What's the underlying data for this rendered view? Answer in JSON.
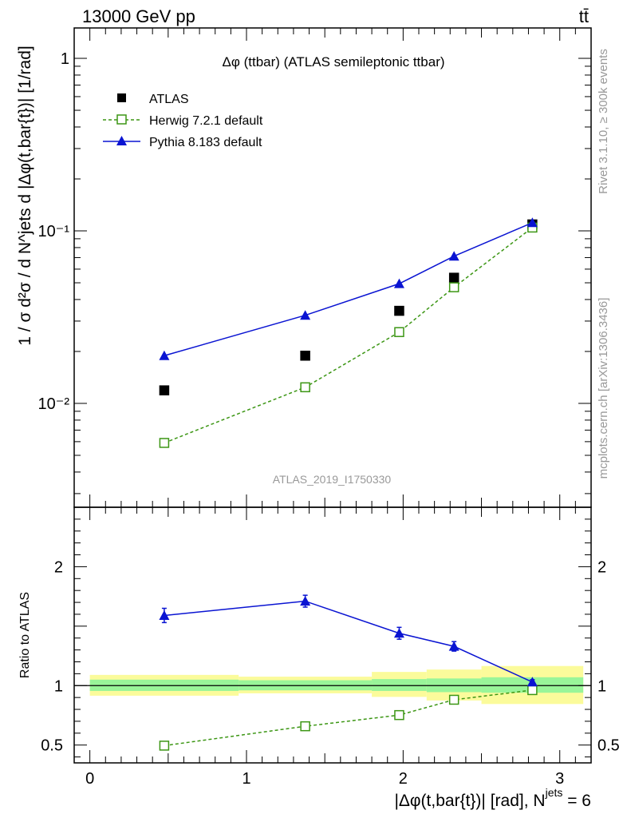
{
  "header": {
    "left": "13000 GeV pp",
    "right": "tt̄"
  },
  "side_labels": {
    "rivet": "Rivet 3.1.10, ≥ 300k events",
    "mcplots": "mcplots.cern.ch [arXiv:1306.3436]"
  },
  "colors": {
    "atlas": "#000000",
    "herwig": "#3c9614",
    "pythia": "#0a14d2",
    "band_inner": "#99f599",
    "band_outer": "#fbfb9b",
    "watermark": "#999999"
  },
  "chart_data": [
    {
      "type": "scatter",
      "panel": "main",
      "title": "Δφ (ttbar) (ATLAS semileptonic ttbar)",
      "ylabel": "1 / σ d²σ / d N^jets d |Δφ(t,bar{t})| [1/rad]",
      "yscale": "log",
      "xlim": [
        -0.1,
        3.2
      ],
      "ylim": [
        0.0025,
        1.5
      ],
      "yticks": [
        {
          "value": 1,
          "label": "1"
        },
        {
          "value": 0.1,
          "label": "10⁻¹"
        },
        {
          "value": 0.01,
          "label": "10⁻²"
        }
      ],
      "legend": [
        "ATLAS",
        "Herwig 7.2.1 default",
        "Pythia 8.183 default"
      ],
      "legend_position": "top-left",
      "annotation": "ATLAS_2019_I1750330",
      "series": [
        {
          "name": "ATLAS",
          "style": "square-filled",
          "x": [
            0.475,
            1.375,
            1.975,
            2.325,
            2.825
          ],
          "y": [
            0.0119,
            0.0189,
            0.0344,
            0.0535,
            0.109
          ]
        },
        {
          "name": "Herwig 7.2.1 default",
          "style": "square-open-dashed",
          "x": [
            0.475,
            1.375,
            1.975,
            2.325,
            2.825
          ],
          "y": [
            0.0059,
            0.0124,
            0.0259,
            0.0471,
            0.1045
          ]
        },
        {
          "name": "Pythia 8.183 default",
          "style": "triangle-solid",
          "x": [
            0.475,
            1.375,
            1.975,
            2.325,
            2.825
          ],
          "y": [
            0.0189,
            0.0324,
            0.0494,
            0.0713,
            0.1115
          ]
        }
      ]
    },
    {
      "type": "line",
      "panel": "ratio",
      "ylabel": "Ratio to ATLAS",
      "xlabel": "|Δφ(t,bar{t})| [rad], N",
      "xlabel_sup": "jets",
      "xlabel_tail": " = 6",
      "xlim": [
        -0.1,
        3.2
      ],
      "ylim": [
        0.35,
        2.5
      ],
      "xticks": [
        {
          "value": 0,
          "label": "0"
        },
        {
          "value": 1,
          "label": "1"
        },
        {
          "value": 2,
          "label": "2"
        },
        {
          "value": 3,
          "label": "3"
        }
      ],
      "yticks": [
        {
          "value": 0.5,
          "label": "0.5"
        },
        {
          "value": 1,
          "label": "1"
        },
        {
          "value": 2,
          "label": "2"
        }
      ],
      "bands": [
        {
          "x0": 0.0,
          "x1": 0.95,
          "inner": [
            0.955,
            1.05
          ],
          "outer": [
            0.915,
            1.09
          ]
        },
        {
          "x0": 0.95,
          "x1": 1.8,
          "inner": [
            0.96,
            1.045
          ],
          "outer": [
            0.935,
            1.075
          ]
        },
        {
          "x0": 1.8,
          "x1": 2.15,
          "inner": [
            0.955,
            1.055
          ],
          "outer": [
            0.905,
            1.115
          ]
        },
        {
          "x0": 2.15,
          "x1": 2.5,
          "inner": [
            0.945,
            1.06
          ],
          "outer": [
            0.875,
            1.135
          ]
        },
        {
          "x0": 2.5,
          "x1": 3.15,
          "inner": [
            0.94,
            1.07
          ],
          "outer": [
            0.845,
            1.165
          ]
        }
      ],
      "series": [
        {
          "name": "Herwig 7.2.1 default",
          "style": "square-open-dashed",
          "x": [
            0.475,
            1.375,
            1.975,
            2.325,
            2.825
          ],
          "y": [
            0.495,
            0.658,
            0.752,
            0.881,
            0.962
          ],
          "err": [
            0,
            0,
            0,
            0,
            0
          ]
        },
        {
          "name": "Pythia 8.183 default",
          "style": "triangle-solid",
          "x": [
            0.475,
            1.375,
            1.975,
            2.325,
            2.825
          ],
          "y": [
            1.59,
            1.71,
            1.44,
            1.33,
            1.03
          ],
          "err": [
            0.06,
            0.05,
            0.05,
            0.04,
            0.02
          ]
        }
      ]
    }
  ]
}
